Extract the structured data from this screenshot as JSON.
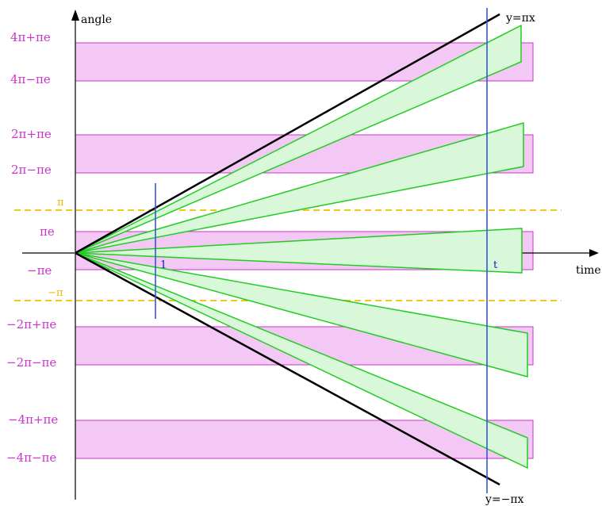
{
  "colors": {
    "band_fill": "#f4c8f4",
    "band_stroke": "#cc33cc",
    "wedge_fill": "#d9f7d9",
    "wedge_stroke": "#22cc22",
    "pi_line": "#f5c518",
    "vertical_line": "#3355dd",
    "bound_line": "#000000",
    "label_magenta": "#cc33cc"
  },
  "axes": {
    "x_label": "time",
    "y_label": "angle"
  },
  "bound_labels": {
    "upper": "y=πx",
    "lower": "y=−πx"
  },
  "pi_labels": {
    "upper": "π",
    "lower": "−π"
  },
  "time_marks": {
    "one": "1",
    "t": "t"
  },
  "bands": [
    {
      "upper_label": "4π+πe",
      "lower_label": "4π−πe"
    },
    {
      "upper_label": "2π+πe",
      "lower_label": "2π−πe"
    },
    {
      "upper_label": "πe",
      "lower_label": "−πe"
    },
    {
      "upper_label": "−2π+πe",
      "lower_label": "−2π−πe"
    },
    {
      "upper_label": "−4π+πe",
      "lower_label": "−4π−πe"
    }
  ],
  "wedges": [
    {
      "name": "wedge-upper-outer"
    },
    {
      "name": "wedge-upper-middle"
    },
    {
      "name": "wedge-center"
    },
    {
      "name": "wedge-lower-middle"
    },
    {
      "name": "wedge-lower-outer"
    }
  ]
}
